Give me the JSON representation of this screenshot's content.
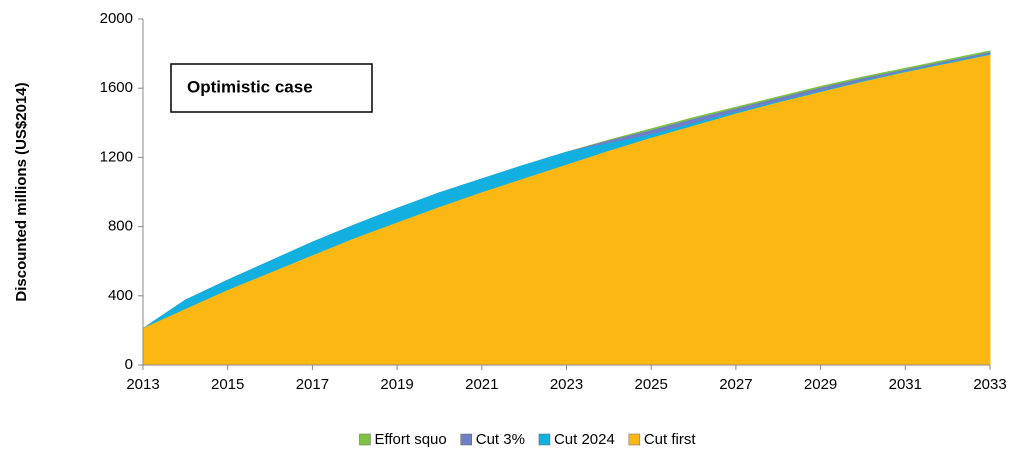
{
  "chart_data": {
    "type": "area",
    "y_label": "Discounted millions (US$2014)",
    "annotation": "Optimistic case",
    "x": [
      2013,
      2014,
      2015,
      2016,
      2017,
      2018,
      2019,
      2020,
      2021,
      2022,
      2023,
      2024,
      2025,
      2026,
      2027,
      2028,
      2029,
      2030,
      2031,
      2032,
      2033
    ],
    "xlim": [
      2013,
      2033
    ],
    "xticks": [
      2013,
      2015,
      2017,
      2019,
      2021,
      2023,
      2025,
      2027,
      2029,
      2031,
      2033
    ],
    "ylim": [
      0,
      2000
    ],
    "yticks": [
      0,
      400,
      800,
      1200,
      1600,
      2000
    ],
    "legend": "bottom",
    "series": [
      {
        "name": "Effort squo",
        "color": "#7dc242",
        "values": [
          210,
          375,
          490,
          600,
          710,
          810,
          905,
          995,
          1075,
          1155,
          1230,
          1300,
          1365,
          1430,
          1490,
          1550,
          1610,
          1665,
          1715,
          1765,
          1815
        ]
      },
      {
        "name": "Cut 3%",
        "color": "#6f7fc7",
        "values": [
          210,
          375,
          490,
          600,
          710,
          810,
          905,
          995,
          1075,
          1155,
          1230,
          1295,
          1355,
          1420,
          1480,
          1540,
          1600,
          1655,
          1705,
          1755,
          1805
        ]
      },
      {
        "name": "Cut 2024",
        "color": "#12b0e0",
        "values": [
          210,
          375,
          490,
          600,
          710,
          810,
          905,
          995,
          1075,
          1155,
          1230,
          1280,
          1330,
          1395,
          1460,
          1520,
          1580,
          1640,
          1695,
          1745,
          1795
        ]
      },
      {
        "name": "Cut first",
        "color": "#fdb713",
        "values": [
          210,
          320,
          430,
          530,
          630,
          730,
          820,
          910,
          995,
          1075,
          1155,
          1235,
          1310,
          1380,
          1450,
          1515,
          1575,
          1635,
          1690,
          1740,
          1790
        ]
      }
    ]
  }
}
